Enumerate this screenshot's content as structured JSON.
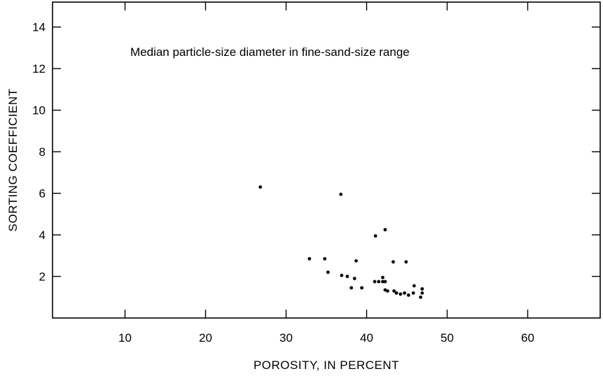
{
  "chart_data": {
    "type": "scatter",
    "title": "",
    "annotation": "Median particle-size diameter in fine-sand-size range",
    "xlabel": "POROSITY, IN PERCENT",
    "ylabel": "SORTING COEFFICIENT",
    "xlim": [
      1,
      69
    ],
    "ylim": [
      0,
      15.2
    ],
    "x_ticks": [
      10,
      20,
      30,
      40,
      50,
      60
    ],
    "y_ticks": [
      2,
      4,
      6,
      8,
      10,
      12,
      14
    ],
    "grid": false,
    "series": [
      {
        "points": [
          [
            26.8,
            6.3
          ],
          [
            36.8,
            5.95
          ],
          [
            42.3,
            4.25
          ],
          [
            41.1,
            3.95
          ],
          [
            32.9,
            2.85
          ],
          [
            34.8,
            2.85
          ],
          [
            38.7,
            2.75
          ],
          [
            43.3,
            2.7
          ],
          [
            44.9,
            2.7
          ],
          [
            35.2,
            2.2
          ],
          [
            36.9,
            2.05
          ],
          [
            37.6,
            2.0
          ],
          [
            38.5,
            1.9
          ],
          [
            41.0,
            1.75
          ],
          [
            41.5,
            1.75
          ],
          [
            42.0,
            1.95
          ],
          [
            42.0,
            1.75
          ],
          [
            42.3,
            1.75
          ],
          [
            38.1,
            1.45
          ],
          [
            39.4,
            1.45
          ],
          [
            42.3,
            1.35
          ],
          [
            42.6,
            1.3
          ],
          [
            43.4,
            1.3
          ],
          [
            43.7,
            1.2
          ],
          [
            44.2,
            1.15
          ],
          [
            44.7,
            1.2
          ],
          [
            45.2,
            1.1
          ],
          [
            45.8,
            1.2
          ],
          [
            45.9,
            1.55
          ],
          [
            46.7,
            1.0
          ],
          [
            46.9,
            1.2
          ],
          [
            46.9,
            1.4
          ]
        ]
      }
    ]
  }
}
